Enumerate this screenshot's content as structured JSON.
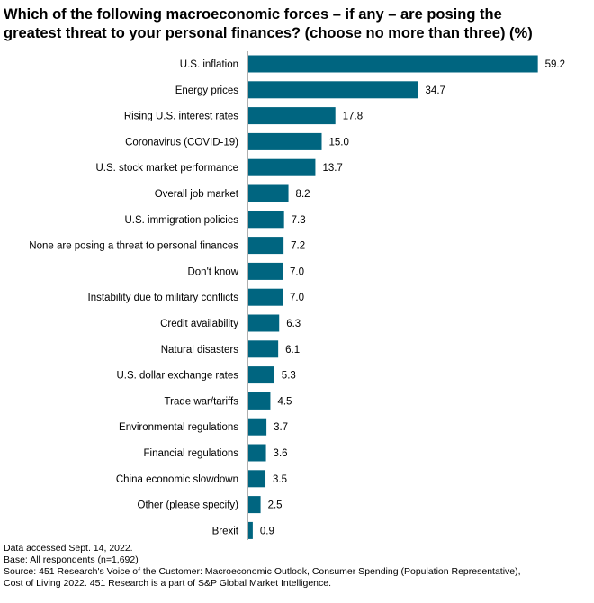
{
  "title_line1": "Which of the following macroeconomic forces – if any – are posing the",
  "title_line2": "greatest threat to your personal finances? (choose no more than three) (%)",
  "chart_data": {
    "type": "bar",
    "orientation": "horizontal",
    "title": "Which of the following macroeconomic forces – if any – are posing the greatest threat to your personal finances? (choose no more than three) (%)",
    "xlabel": "",
    "ylabel": "",
    "xlim": [
      0,
      60
    ],
    "bar_color": "#006580",
    "categories": [
      "U.S. inflation",
      "Energy prices",
      "Rising U.S. interest rates",
      "Coronavirus (COVID-19)",
      "U.S. stock market performance",
      "Overall job market",
      "U.S. immigration policies",
      "None are posing a threat to personal finances",
      "Don't know",
      "Instability due to military conflicts",
      "Credit availability",
      "Natural disasters",
      "U.S. dollar exchange rates",
      "Trade war/tariffs",
      "Environmental regulations",
      "Financial regulations",
      "China economic slowdown",
      "Other (please specify)",
      "Brexit"
    ],
    "values": [
      59.2,
      34.7,
      17.8,
      15.0,
      13.7,
      8.2,
      7.3,
      7.2,
      7.0,
      7.0,
      6.3,
      6.1,
      5.3,
      4.5,
      3.7,
      3.6,
      3.5,
      2.5,
      0.9
    ],
    "value_labels": [
      "59.2",
      "34.7",
      "17.8",
      "15.0",
      "13.7",
      "8.2",
      "7.3",
      "7.2",
      "7.0",
      "7.0",
      "6.3",
      "6.1",
      "5.3",
      "4.5",
      "3.7",
      "3.6",
      "3.5",
      "2.5",
      "0.9"
    ]
  },
  "footer": {
    "line1": "Data accessed Sept. 14, 2022.",
    "line2": "Base: All respondents (n=1,692)",
    "line3": "Source: 451 Research's Voice of the Customer: Macroeconomic Outlook, Consumer Spending (Population Representative),",
    "line4": "Cost of Living 2022. 451 Research is a part of S&P Global Market Intelligence."
  }
}
